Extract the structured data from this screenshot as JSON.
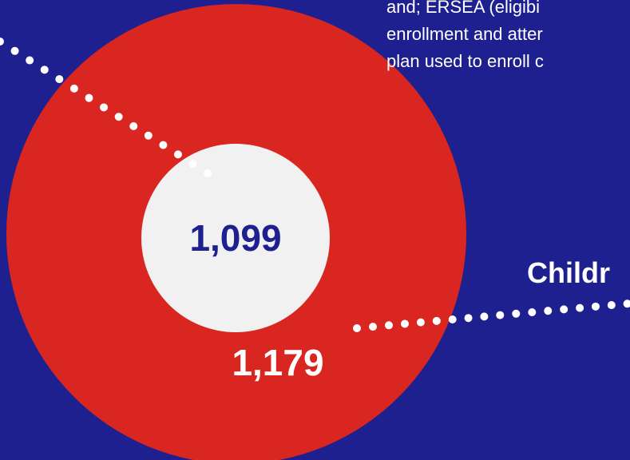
{
  "colors": {
    "background": "#1e2090",
    "outer_circle": "#d92620",
    "inner_circle": "#f1f1f1",
    "text_dark": "#1e2090",
    "text_light": "#ffffff"
  },
  "inner_value": "1,099",
  "outer_value": "1,179",
  "heading": "Childr",
  "description_lines": [
    "and; ERSEA (eligibi",
    "enrollment and atter",
    "plan used to enroll c"
  ]
}
